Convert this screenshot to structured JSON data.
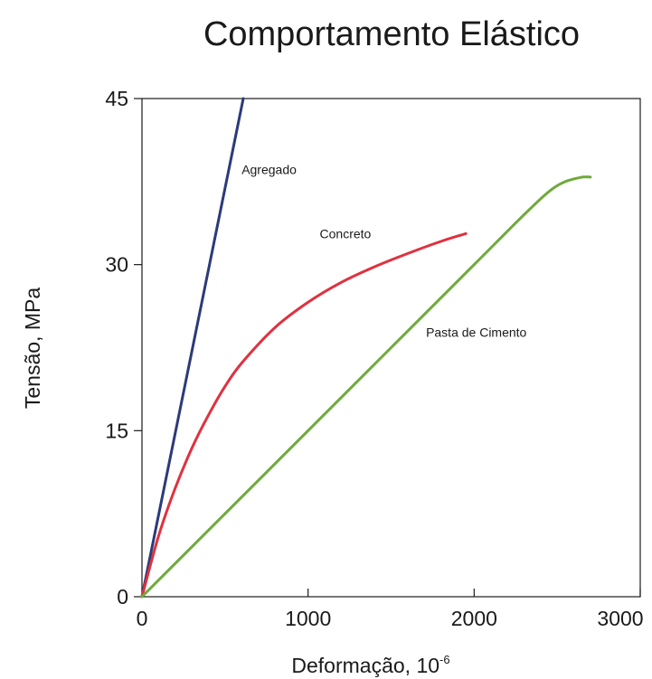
{
  "chart_data": {
    "type": "line",
    "title": "Comportamento Elástico",
    "xlabel": "Deformação, 10",
    "xlabel_superscript": "-6",
    "ylabel": "Tensão, MPa",
    "xlim": [
      0,
      3000
    ],
    "ylim": [
      0,
      45
    ],
    "x_ticks": [
      0,
      1000,
      2000,
      3000
    ],
    "y_ticks": [
      0,
      15,
      30,
      45
    ],
    "grid": false,
    "series": [
      {
        "name": "Agregado",
        "color": "#2b3a7a",
        "x": [
          0,
          610
        ],
        "y": [
          0,
          45
        ]
      },
      {
        "name": "Concreto",
        "color": "#e0313f",
        "x": [
          0,
          100,
          200,
          300,
          400,
          500,
          600,
          800,
          1000,
          1200,
          1400,
          1600,
          1800,
          1950
        ],
        "y": [
          0,
          5.5,
          9.8,
          13.4,
          16.4,
          19.0,
          21.1,
          24.3,
          26.6,
          28.4,
          29.8,
          31.0,
          32.1,
          32.8
        ]
      },
      {
        "name": "Pasta de Cimento",
        "color": "#6eaa3a",
        "x": [
          0,
          500,
          1000,
          1500,
          2000,
          2300,
          2450,
          2550,
          2650,
          2700
        ],
        "y": [
          0,
          7.5,
          15.0,
          22.5,
          30.0,
          34.5,
          36.6,
          37.5,
          37.9,
          37.9
        ]
      }
    ],
    "annotations": [
      {
        "text": "Agregado",
        "x": 600,
        "y": 38.2
      },
      {
        "text": "Concreto",
        "x": 1070,
        "y": 32.4
      },
      {
        "text": "Pasta de Cimento",
        "x": 1710,
        "y": 23.5
      }
    ]
  }
}
